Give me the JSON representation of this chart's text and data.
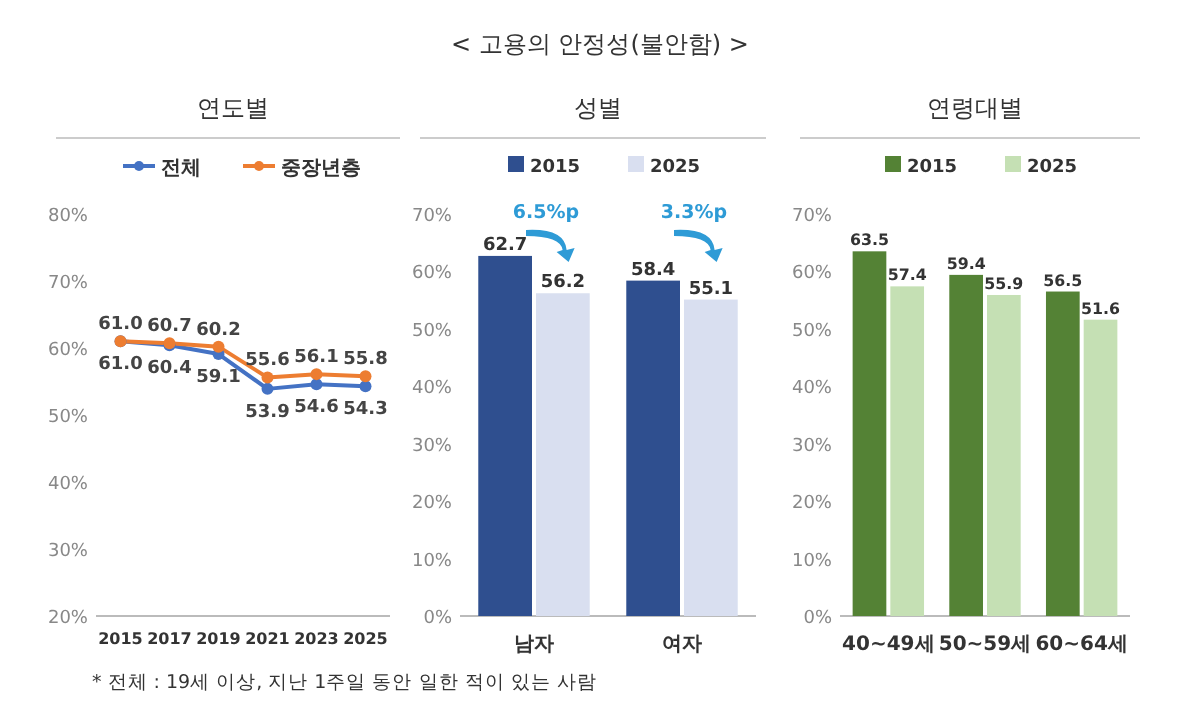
{
  "chart_data": [
    {
      "type": "line",
      "title": "연도별",
      "categories": [
        "2015",
        "2017",
        "2019",
        "2021",
        "2023",
        "2025"
      ],
      "series": [
        {
          "name": "전체",
          "color": "#4472c4",
          "values": [
            61.0,
            60.4,
            59.1,
            53.9,
            54.6,
            54.3
          ],
          "value_labels": [
            "61.0",
            "60.4",
            "59.1",
            "53.9",
            "54.6",
            "54.3"
          ]
        },
        {
          "name": "중장년층",
          "color": "#ed7d31",
          "values": [
            61.0,
            60.7,
            60.2,
            55.6,
            56.1,
            55.8
          ],
          "value_labels": [
            "61.0",
            "60.7",
            "60.2",
            "55.6",
            "56.1",
            "55.8"
          ]
        }
      ],
      "ylim": [
        20,
        80
      ],
      "yticks": [
        {
          "value": 20,
          "label": "20%"
        },
        {
          "value": 30,
          "label": "30%"
        },
        {
          "value": 40,
          "label": "40%"
        },
        {
          "value": 50,
          "label": "50%"
        },
        {
          "value": 60,
          "label": "60%"
        },
        {
          "value": 70,
          "label": "70%"
        },
        {
          "value": 80,
          "label": "80%"
        }
      ],
      "marker": "circle",
      "legend": "top",
      "grid": false,
      "annotations": [
        "< 고용의 안정성(불안함) >",
        "* 전체 : 19세 이상, 지난 1주일 동안 일한 적이 있는 사람"
      ]
    },
    {
      "type": "bar",
      "title": "성별",
      "categories": [
        "남자",
        "여자"
      ],
      "series": [
        {
          "name": "2015",
          "color": "#2f4f8f",
          "values": [
            62.7,
            58.4
          ]
        },
        {
          "name": "2025",
          "color": "#d9dff0",
          "values": [
            56.2,
            55.1
          ]
        }
      ],
      "ylim": [
        0,
        70
      ],
      "yticks": [
        {
          "value": 0,
          "label": "0%"
        },
        {
          "value": 10,
          "label": "10%"
        },
        {
          "value": 20,
          "label": "20%"
        },
        {
          "value": 30,
          "label": "30%"
        },
        {
          "value": 40,
          "label": "40%"
        },
        {
          "value": 50,
          "label": "50%"
        },
        {
          "value": 60,
          "label": "60%"
        },
        {
          "value": 70,
          "label": "70%"
        }
      ],
      "data_labels": true,
      "legend": "top",
      "grid": false,
      "annotations": [
        "6.5%p",
        "3.3%p"
      ]
    },
    {
      "type": "bar",
      "title": "연령대별",
      "categories": [
        "40~49세",
        "50~59세",
        "60~64세"
      ],
      "series": [
        {
          "name": "2015",
          "color": "#548235",
          "values": [
            63.5,
            59.4,
            56.5
          ]
        },
        {
          "name": "2025",
          "color": "#c5e0b4",
          "values": [
            57.4,
            55.9,
            51.6
          ]
        }
      ],
      "ylim": [
        0,
        70
      ],
      "yticks": [
        {
          "value": 0,
          "label": "0%"
        },
        {
          "value": 10,
          "label": "10%"
        },
        {
          "value": 20,
          "label": "20%"
        },
        {
          "value": 30,
          "label": "30%"
        },
        {
          "value": 40,
          "label": "40%"
        },
        {
          "value": 50,
          "label": "50%"
        },
        {
          "value": 60,
          "label": "60%"
        },
        {
          "value": 70,
          "label": "70%"
        }
      ],
      "data_labels": true,
      "legend": "top",
      "grid": false
    }
  ]
}
